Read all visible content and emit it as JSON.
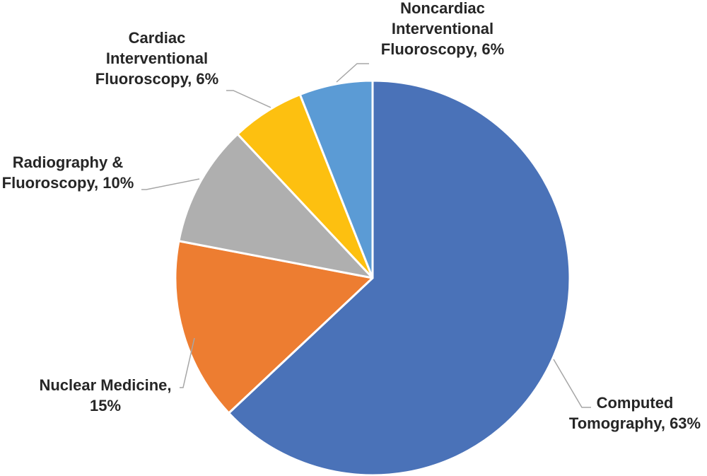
{
  "chart_data": {
    "type": "pie",
    "title": "",
    "start_angle_deg": 0,
    "direction": "clockwise",
    "slices": [
      {
        "key": "ct",
        "label_lines": [
          "Computed",
          "Tomography, 63%"
        ],
        "category": "Computed Tomography",
        "value": 63,
        "color": "#4a72b8"
      },
      {
        "key": "nm",
        "label_lines": [
          "Nuclear Medicine,",
          "15%"
        ],
        "category": "Nuclear Medicine",
        "value": 15,
        "color": "#ed7d31"
      },
      {
        "key": "rf",
        "label_lines": [
          "Radiography &",
          "Fluoroscopy, 10%"
        ],
        "category": "Radiography & Fluoroscopy",
        "value": 10,
        "color": "#afafaf"
      },
      {
        "key": "cif",
        "label_lines": [
          "Cardiac",
          "Interventional",
          "Fluoroscopy, 6%"
        ],
        "category": "Cardiac Interventional Fluoroscopy",
        "value": 6,
        "color": "#fdc010"
      },
      {
        "key": "ncif",
        "label_lines": [
          "Noncardiac",
          "Interventional",
          "Fluoroscopy, 6%"
        ],
        "category": "Noncardiac Interventional Fluoroscopy",
        "value": 6,
        "color": "#5b9bd5"
      }
    ]
  }
}
